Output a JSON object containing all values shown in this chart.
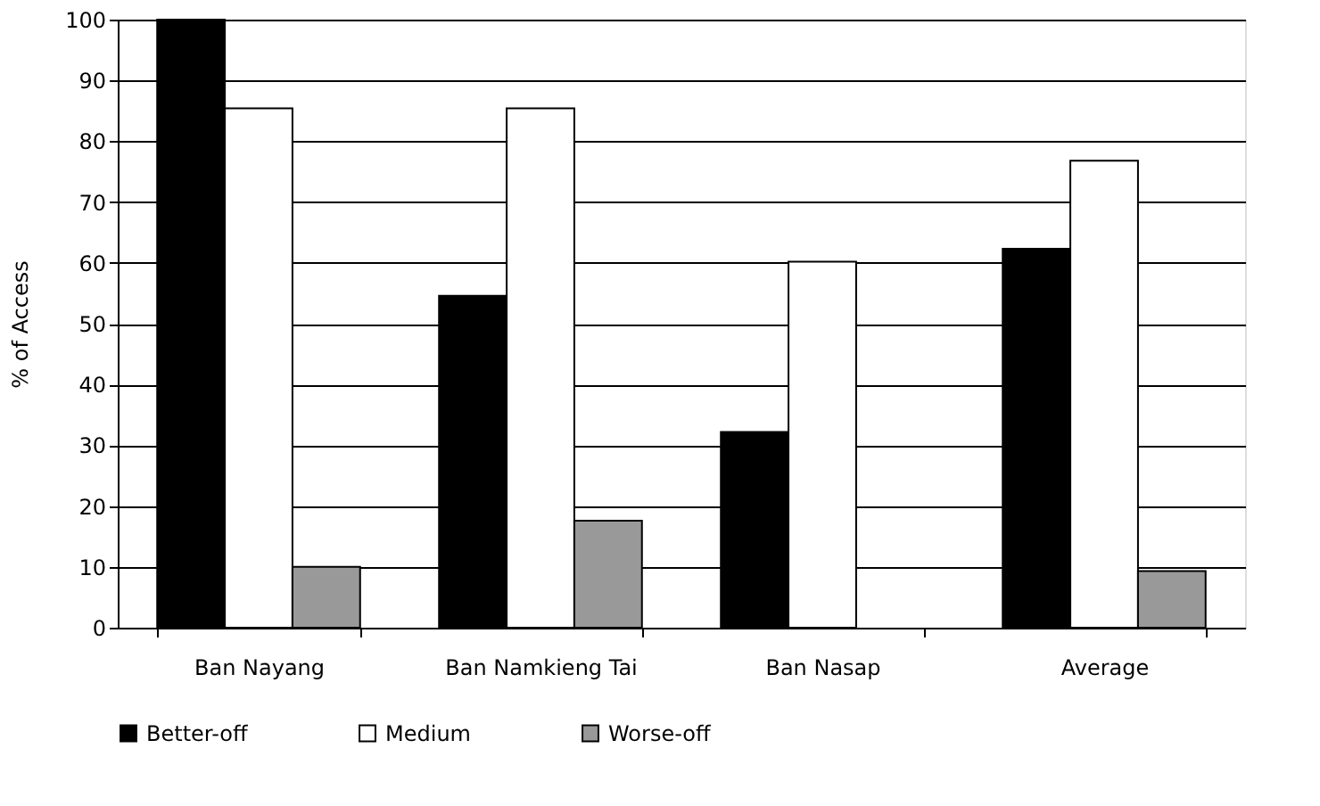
{
  "chart_data": {
    "type": "bar",
    "ylabel": "% of Access",
    "categories": [
      "Ban Nayang",
      "Ban Namkieng Tai",
      "Ban Nasap",
      "Average"
    ],
    "series": [
      {
        "name": "Better-off",
        "color": "#000000",
        "values": [
          100,
          54.6,
          32.2,
          62.3
        ]
      },
      {
        "name": "Medium",
        "color": "#ffffff",
        "values": [
          85.4,
          85.4,
          60.2,
          76.8
        ]
      },
      {
        "name": "Worse-off",
        "color": "#999999",
        "values": [
          10,
          17.6,
          0,
          9.3
        ]
      }
    ],
    "ylim": [
      0,
      100
    ],
    "yticks": [
      0,
      10,
      20,
      30,
      40,
      50,
      60,
      70,
      80,
      90,
      100
    ],
    "grid": "y",
    "legend": "bottom"
  }
}
